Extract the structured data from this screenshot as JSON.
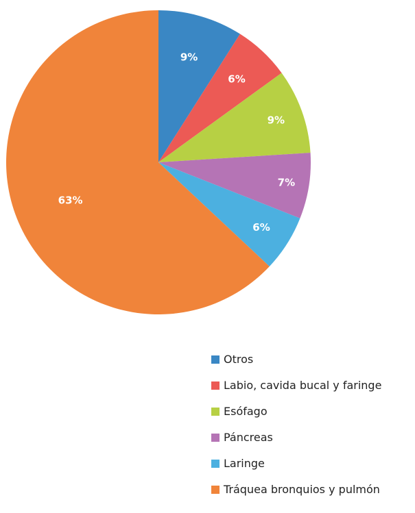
{
  "chart_data": {
    "type": "pie",
    "title": "",
    "legend_position": "bottom-right",
    "slices": [
      {
        "label": "Otros",
        "value": 9,
        "display": "9%",
        "color": "#3A87C4"
      },
      {
        "label": "Labio, cavida bucal y faringe",
        "value": 6,
        "display": "6%",
        "color": "#EC5A55"
      },
      {
        "label": "Esófago",
        "value": 9,
        "display": "9%",
        "color": "#B7D044"
      },
      {
        "label": "Páncreas",
        "value": 7,
        "display": "7%",
        "color": "#B574B5"
      },
      {
        "label": "Laringe",
        "value": 6,
        "display": "6%",
        "color": "#4CB0E0"
      },
      {
        "label": "Tráquea bronquios y pulmón",
        "value": 63,
        "display": "63%",
        "color": "#F0843A"
      }
    ]
  }
}
